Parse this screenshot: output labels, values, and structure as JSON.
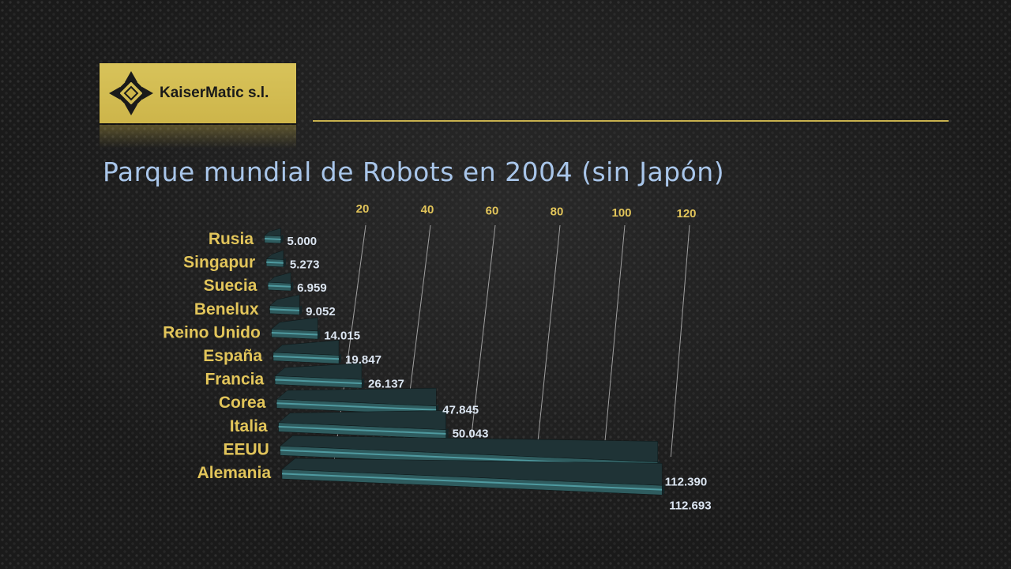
{
  "logo": {
    "text": "KaiserMatic s.l."
  },
  "title": "Parque mundial de Robots en 2004 (sin Japón)",
  "colors": {
    "logo_bg": "#cdb54a",
    "rule": "#c8b14e",
    "title": "#a9c6ea",
    "category_label": "#e2c55a",
    "tick_label": "#e2c55a",
    "value_label": "#dce6f2",
    "bar_face": "#2f5c5f",
    "bar_highlight": "#4f9aa0"
  },
  "chart_data": {
    "type": "bar",
    "orientation": "horizontal",
    "style": "3d-perspective",
    "categories": [
      "Rusia",
      "Singapur",
      "Suecia",
      "Benelux",
      "Reino Unido",
      "España",
      "Francia",
      "Corea",
      "Italia",
      "EEUU",
      "Alemania"
    ],
    "values": [
      5000,
      5273,
      6959,
      9052,
      14015,
      19847,
      26137,
      47845,
      50043,
      112390,
      112693
    ],
    "value_labels": [
      "5.000",
      "5.273",
      "6.959",
      "9.052",
      "14.015",
      "19.847",
      "26.137",
      "47.845",
      "50.043",
      "112.390",
      "112.693"
    ],
    "x_ticks": [
      20,
      40,
      60,
      80,
      100,
      120
    ],
    "x_tick_unit_multiplier": 1000,
    "xlim": [
      0,
      120000
    ],
    "grid": true,
    "legend": "none"
  }
}
